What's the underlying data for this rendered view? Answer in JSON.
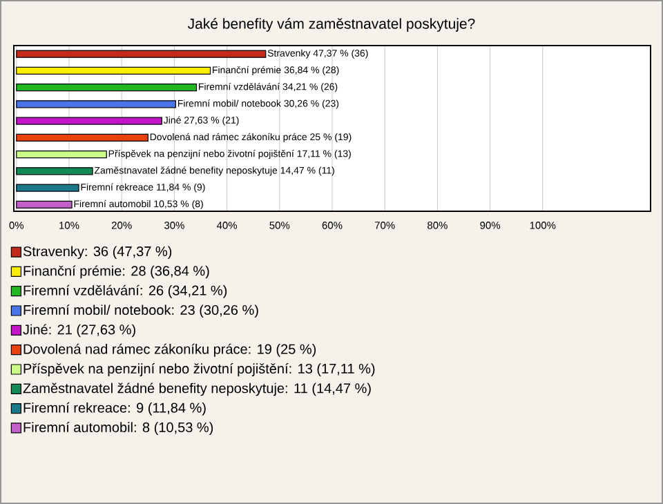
{
  "chart_data": {
    "type": "bar",
    "orientation": "horizontal",
    "title": "Jaké benefity vám zaměstnavatel poskytuje?",
    "categories": [
      null,
      null,
      null,
      null,
      null,
      null,
      null,
      null,
      null,
      null
    ],
    "series": [
      {
        "name": "Stravenky: 36 (47,37 %)",
        "color": "#c42a1c",
        "values": [
          47.37,
          null,
          null,
          null,
          null,
          null,
          null,
          null,
          null,
          null
        ],
        "value_labels": [
          "Stravenky 47,37 % (36)",
          null,
          null,
          null,
          null,
          null,
          null,
          null,
          null,
          null
        ]
      },
      {
        "name": "Finanční prémie: 28 (36,84 %)",
        "color": "#ffee00",
        "values": [
          null,
          36.84,
          null,
          null,
          null,
          null,
          null,
          null,
          null,
          null
        ],
        "value_labels": [
          null,
          "Finanční prémie 36,84 % (28)",
          null,
          null,
          null,
          null,
          null,
          null,
          null,
          null
        ]
      },
      {
        "name": "Firemní vzdělávání: 26 (34,21 %)",
        "color": "#22b822",
        "values": [
          null,
          null,
          34.21,
          null,
          null,
          null,
          null,
          null,
          null,
          null
        ],
        "value_labels": [
          null,
          null,
          "Firemní vzdělávání 34,21 % (26)",
          null,
          null,
          null,
          null,
          null,
          null,
          null
        ]
      },
      {
        "name": "Firemní mobil/ notebook: 23 (30,26 %)",
        "color": "#4a74e8",
        "values": [
          null,
          null,
          null,
          30.26,
          null,
          null,
          null,
          null,
          null,
          null
        ],
        "value_labels": [
          null,
          null,
          null,
          "Firemní mobil/ notebook 30,26 % (23)",
          null,
          null,
          null,
          null,
          null,
          null
        ]
      },
      {
        "name": "Jiné: 21 (27,63 %)",
        "color": "#c414c8",
        "values": [
          null,
          null,
          null,
          null,
          27.63,
          null,
          null,
          null,
          null,
          null
        ],
        "value_labels": [
          null,
          null,
          null,
          null,
          "Jiné 27,63 % (21)",
          null,
          null,
          null,
          null,
          null
        ]
      },
      {
        "name": "Dovolená nad rámec zákoníku práce: 19 (25 %)",
        "color": "#e8420e",
        "values": [
          null,
          null,
          null,
          null,
          null,
          25,
          null,
          null,
          null,
          null
        ],
        "value_labels": [
          null,
          null,
          null,
          null,
          null,
          "Dovolená nad rámec zákoníku práce 25 % (19)",
          null,
          null,
          null,
          null
        ]
      },
      {
        "name": "Příspěvek na penzijní nebo životní pojištění: 13 (17,11 %)",
        "color": "#ccff88",
        "values": [
          null,
          null,
          null,
          null,
          null,
          null,
          17.11,
          null,
          null,
          null
        ],
        "value_labels": [
          null,
          null,
          null,
          null,
          null,
          null,
          "Příspěvek na penzijní nebo životní pojištění 17,11 % (13)",
          null,
          null,
          null
        ]
      },
      {
        "name": "Zaměstnavatel žádné benefity neposkytuje: 11 (14,47 %)",
        "color": "#138a55",
        "values": [
          null,
          null,
          null,
          null,
          null,
          null,
          null,
          14.47,
          null,
          null
        ],
        "value_labels": [
          null,
          null,
          null,
          null,
          null,
          null,
          null,
          "Zaměstnavatel žádné benefity neposkytuje 14,47 % (11)",
          null,
          null
        ]
      },
      {
        "name": "Firemní rekreace: 9 (11,84 %)",
        "color": "#1a7a8c",
        "values": [
          null,
          null,
          null,
          null,
          null,
          null,
          null,
          null,
          11.84,
          null
        ],
        "value_labels": [
          null,
          null,
          null,
          null,
          null,
          null,
          null,
          null,
          "Firemní rekreace 11,84 % (9)",
          null
        ]
      },
      {
        "name": "Firemní automobil: 8 (10,53 %)",
        "color": "#c060c8",
        "values": [
          null,
          null,
          null,
          null,
          null,
          null,
          null,
          null,
          null,
          10.53
        ],
        "value_labels": [
          null,
          null,
          null,
          null,
          null,
          null,
          null,
          null,
          null,
          "Firemní automobil 10,53 % (8)"
        ]
      }
    ],
    "xlim": [
      -0.5,
      120.5
    ],
    "xticks": [
      {
        "value": 0,
        "label": "0%"
      },
      {
        "value": 10,
        "label": "10%"
      },
      {
        "value": 20,
        "label": "20%"
      },
      {
        "value": 30,
        "label": "30%"
      },
      {
        "value": 40,
        "label": "40%"
      },
      {
        "value": 50,
        "label": "50%"
      },
      {
        "value": 60,
        "label": "60%"
      },
      {
        "value": 70,
        "label": "70%"
      },
      {
        "value": 80,
        "label": "80%"
      },
      {
        "value": 90,
        "label": "90%"
      },
      {
        "value": 100,
        "label": "100%"
      }
    ],
    "grid": "x",
    "legend": "bottom"
  }
}
